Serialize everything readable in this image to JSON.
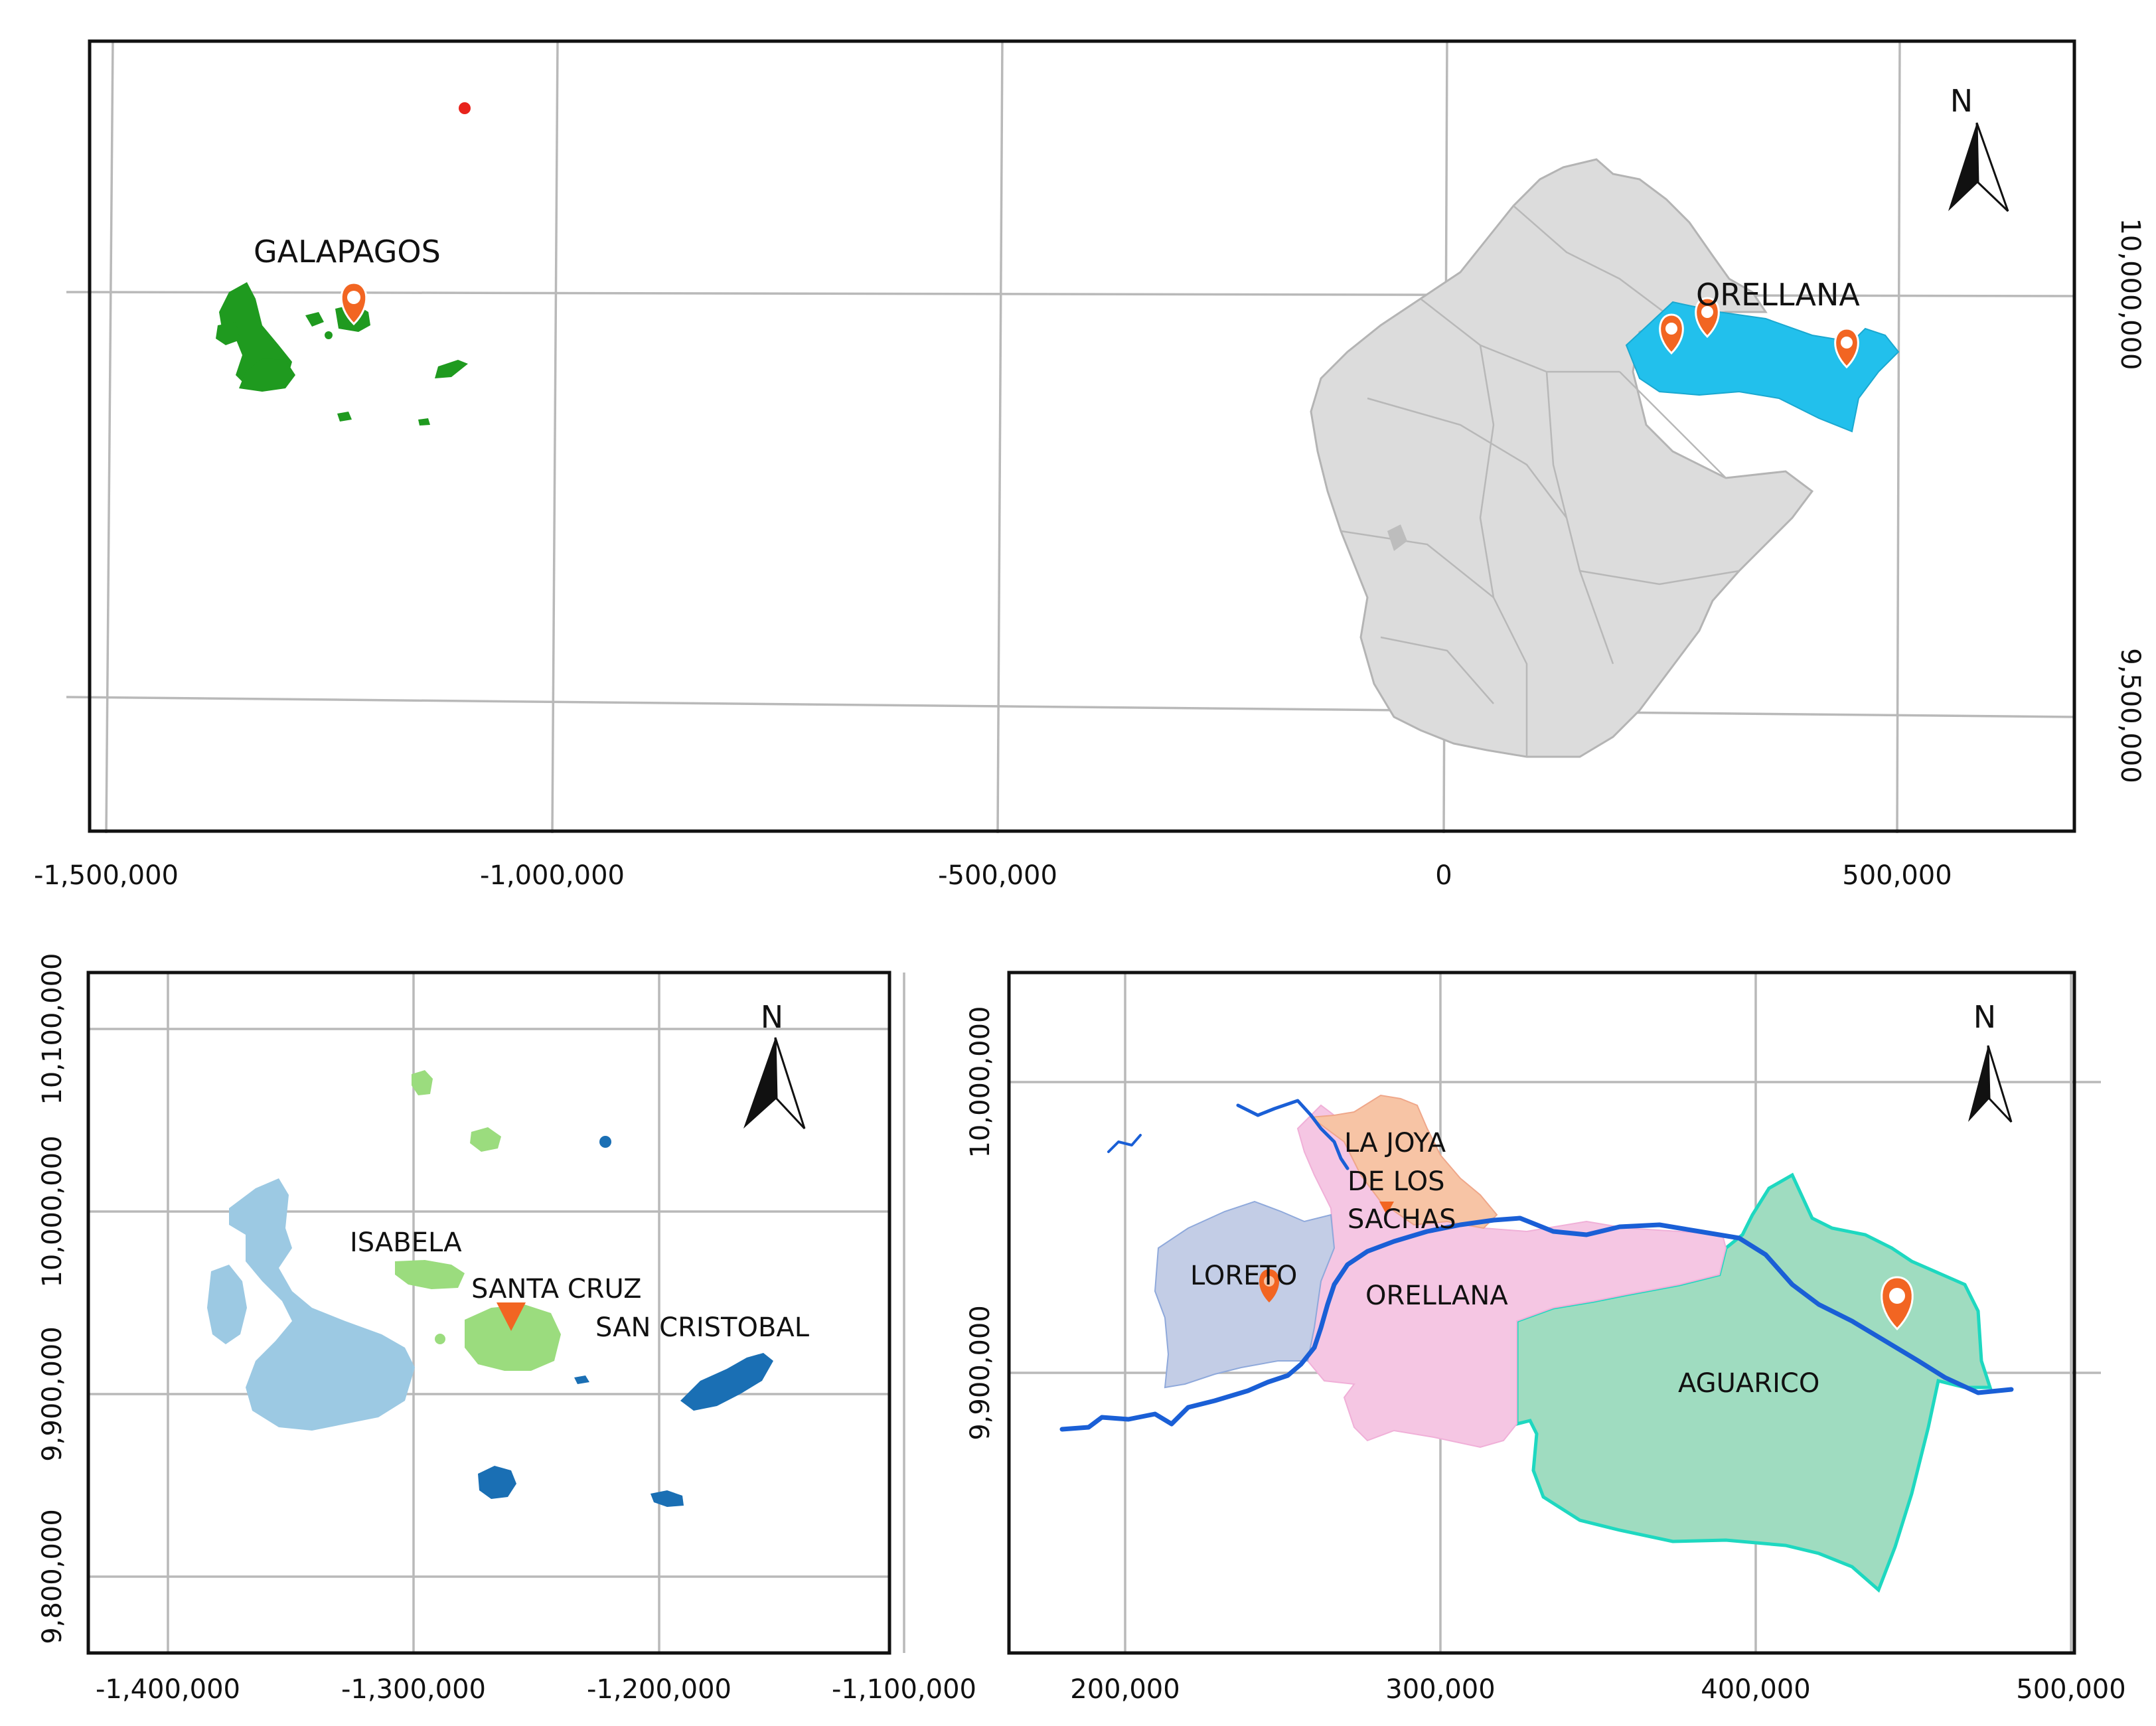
{
  "overview_map": {
    "x_ticks": [
      "-1,500,000",
      "-1,000,000",
      "-500,000",
      "0",
      "500,000"
    ],
    "y_ticks": [
      "10,000,000",
      "9,500,000"
    ],
    "north_label": "N",
    "labels": {
      "galapagos": "GALAPAGOS",
      "orellana": "ORELLANA"
    },
    "colors": {
      "galapagos": "#1f9a1f",
      "orellana": "#22c0ec",
      "ecuador": "#dcdcdc",
      "marker": "#f26522",
      "point": "#e8231c"
    }
  },
  "galapagos_map": {
    "x_ticks": [
      "-1,400,000",
      "-1,300,000",
      "-1,200,000",
      "-1,100,000"
    ],
    "y_ticks": [
      "10,100,000",
      "10,000,000",
      "9,900,000",
      "9,800,000"
    ],
    "north_label": "N",
    "labels": {
      "isabela": "ISABELA",
      "santa_cruz": "SANTA CRUZ",
      "san_cristobal": "SAN CRISTOBAL"
    },
    "colors": {
      "isabela": "#9cc9e3",
      "santa_cruz": "#9bdc7e",
      "san_cristobal": "#1a6fb4",
      "marker": "#f26522"
    }
  },
  "orellana_map": {
    "x_ticks": [
      "200,000",
      "300,000",
      "400,000",
      "500,000"
    ],
    "y_ticks": [
      "10,000,000",
      "9,900,000"
    ],
    "north_label": "N",
    "labels": {
      "la_joya_1": "LA JOYA",
      "la_joya_2": "DE LOS",
      "la_joya_3": "SACHAS",
      "loreto": "LORETO",
      "orellana": "ORELLANA",
      "aguarico": "AGUARICO"
    },
    "colors": {
      "loreto": "#c3cde6",
      "la_joya": "#f7c4a5",
      "orellana": "#f5c6e3",
      "aguarico": "#9fdcc0",
      "aguarico_edge": "#1ed8c0",
      "river": "#1a5fd6",
      "marker": "#f26522"
    }
  }
}
